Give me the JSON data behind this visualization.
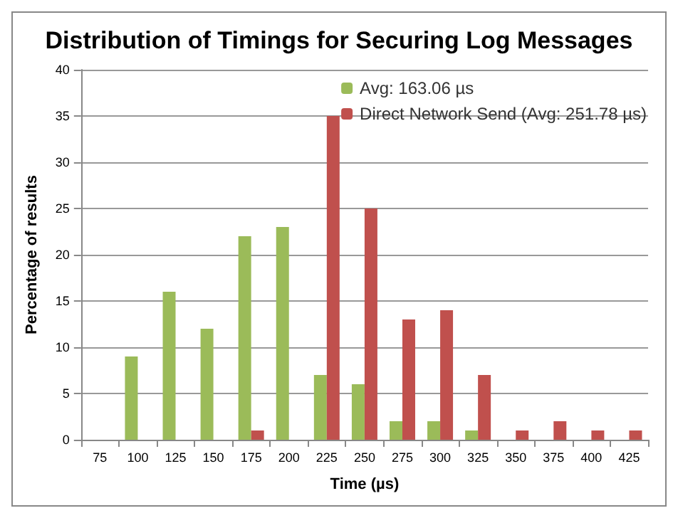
{
  "chart_data": {
    "type": "bar",
    "title": "Distribution of Timings for Securing Log Messages",
    "xlabel": "Time (µs)",
    "ylabel": "Percentage of results",
    "categories": [
      "75",
      "100",
      "125",
      "150",
      "175",
      "200",
      "225",
      "250",
      "275",
      "300",
      "325",
      "350",
      "375",
      "400",
      "425"
    ],
    "series": [
      {
        "name": "Avg: 163.06 µs",
        "color": "#9bbb59",
        "values": [
          0,
          9,
          16,
          12,
          22,
          23,
          7,
          6,
          2,
          2,
          1,
          0,
          0,
          0,
          0
        ]
      },
      {
        "name": "Direct Network Send (Avg: 251.78 µs)",
        "color": "#c0504d",
        "values": [
          0,
          0,
          0,
          0,
          1,
          0,
          35,
          25,
          13,
          14,
          7,
          1,
          2,
          1,
          1
        ]
      }
    ],
    "ylim": [
      0,
      40
    ],
    "yticks": [
      0,
      5,
      10,
      15,
      20,
      25,
      30,
      35,
      40
    ],
    "grid": "y",
    "legend": "top right"
  }
}
